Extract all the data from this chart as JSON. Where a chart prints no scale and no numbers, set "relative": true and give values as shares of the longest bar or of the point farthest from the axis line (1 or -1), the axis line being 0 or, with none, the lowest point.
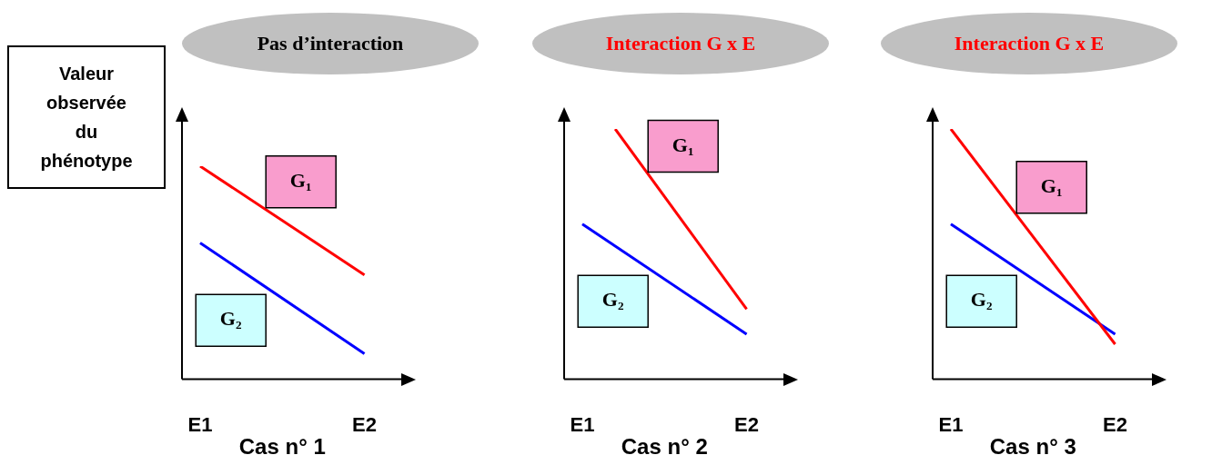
{
  "chart_data": [
    {
      "type": "line",
      "title": "Pas d’interaction",
      "xlabel": "Cas n° 1",
      "ylabel": "Valeur observée du phénotype",
      "categories": [
        "E1",
        "E2"
      ],
      "relative": true,
      "legend": false,
      "series": [
        {
          "name": "G₁",
          "color": "#ff0000",
          "values": [
            1,
            0.49
          ]
        },
        {
          "name": "G₂",
          "color": "#0000ff",
          "values": [
            0.64,
            0.12
          ]
        }
      ]
    },
    {
      "type": "line",
      "title": "Interaction G x E",
      "xlabel": "Cas n° 2",
      "categories": [
        "E1",
        null,
        null,
        null,
        null,
        "E2"
      ],
      "relative": true,
      "legend": false,
      "series": [
        {
          "name": "G₁",
          "color": "#ff0000",
          "values": [
            null,
            1,
            null,
            null,
            null,
            0.28
          ]
        },
        {
          "name": "G₂",
          "color": "#0000ff",
          "values": [
            0.62,
            null,
            null,
            null,
            null,
            0.18
          ]
        }
      ]
    },
    {
      "type": "line",
      "title": "Interaction G x E",
      "xlabel": "Cas n° 3",
      "categories": [
        "E1",
        "E2"
      ],
      "relative": true,
      "legend": false,
      "series": [
        {
          "name": "G₁",
          "color": "#ff0000",
          "values": [
            1,
            0.14
          ]
        },
        {
          "name": "G₂",
          "color": "#0000ff",
          "values": [
            0.62,
            0.18
          ]
        }
      ]
    }
  ]
}
